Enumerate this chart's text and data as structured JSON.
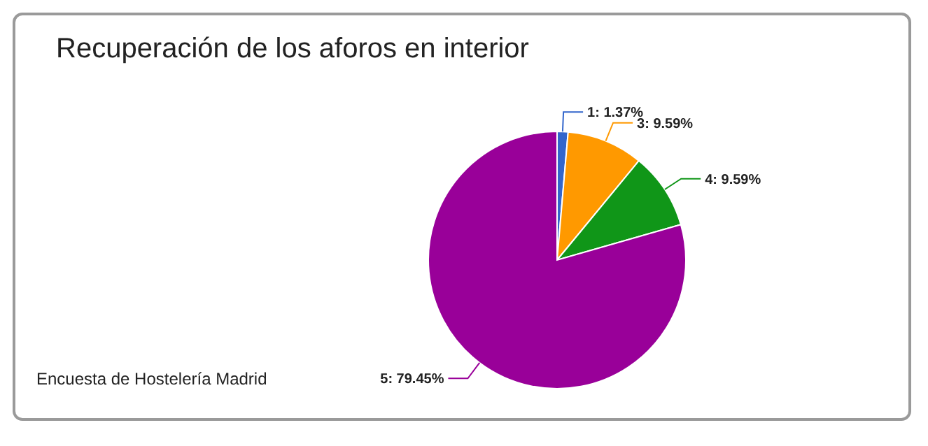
{
  "chart_data": {
    "type": "pie",
    "title": "Recuperación de los aforos en interior",
    "categories": [
      null,
      null,
      null,
      null
    ],
    "values": [
      1.37,
      9.59,
      9.59,
      79.45
    ],
    "colors": [
      "#3366cc",
      "#ff9900",
      "#109618",
      "#990099"
    ],
    "value_labels": [
      "1: 1.37%",
      "3: 9.59%",
      "4: 9.59%",
      "5: 79.45%"
    ],
    "annotations": [
      "Encuesta de Hostelería Madrid"
    ]
  }
}
